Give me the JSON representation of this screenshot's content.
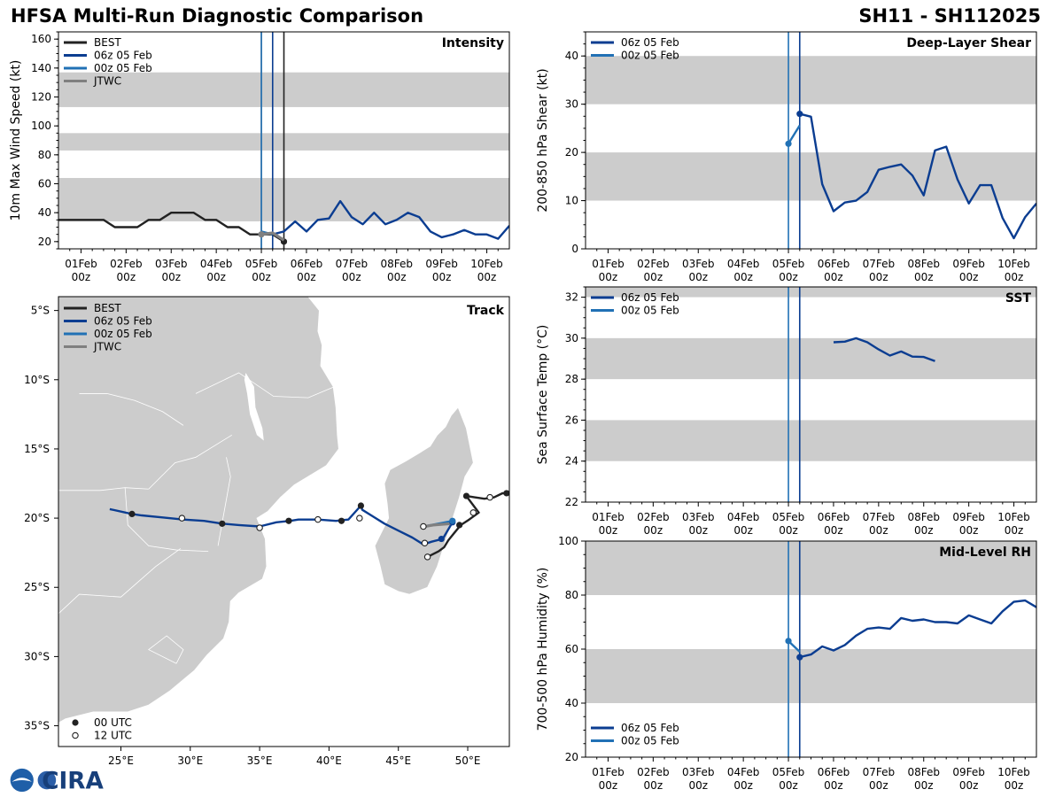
{
  "header": {
    "title": "HFSA Multi-Run Diagnostic Comparison",
    "storm_id": "SH11 - SH112025"
  },
  "logos": {
    "cira": "CIRA"
  },
  "colors": {
    "best": "#222222",
    "run06": "#0b3d91",
    "run00": "#2171b5",
    "jtwc": "#808080",
    "band": "#cccccc",
    "land": "#cccccc",
    "border": "#ffffff"
  },
  "time_axis": {
    "tick_labels": [
      [
        "01Feb",
        "00z"
      ],
      [
        "02Feb",
        "00z"
      ],
      [
        "03Feb",
        "00z"
      ],
      [
        "04Feb",
        "00z"
      ],
      [
        "05Feb",
        "00z"
      ],
      [
        "06Feb",
        "00z"
      ],
      [
        "07Feb",
        "00z"
      ],
      [
        "08Feb",
        "00z"
      ],
      [
        "09Feb",
        "00z"
      ],
      [
        "10Feb",
        "00z"
      ]
    ],
    "tick_days": [
      1,
      2,
      3,
      4,
      5,
      6,
      7,
      8,
      9,
      10
    ],
    "range_days": [
      0.5,
      10.5
    ]
  },
  "chart_data": [
    {
      "id": "intensity",
      "type": "line",
      "title": "Intensity",
      "ylabel": "10m Max Wind Speed (kt)",
      "ylim": [
        15,
        165
      ],
      "yticks": [
        20,
        40,
        60,
        80,
        100,
        120,
        140,
        160
      ],
      "bands": [
        [
          34,
          64
        ],
        [
          83,
          95
        ],
        [
          113,
          137
        ]
      ],
      "vlines": [
        {
          "x": 5.0,
          "series": "jtwc"
        },
        {
          "x": 5.0,
          "series": "run00"
        },
        {
          "x": 5.25,
          "series": "run06"
        },
        {
          "x": 5.5,
          "series": "best"
        }
      ],
      "legend": [
        "BEST",
        "06z 05 Feb",
        "00z 05 Feb",
        "JTWC"
      ],
      "series": [
        {
          "name": "BEST",
          "key": "best",
          "x": [
            0.5,
            0.75,
            1,
            1.25,
            1.5,
            1.75,
            2,
            2.25,
            2.5,
            2.75,
            3,
            3.25,
            3.5,
            3.75,
            4,
            4.25,
            4.5,
            4.75,
            5,
            5.25,
            5.5
          ],
          "y": [
            35,
            35,
            35,
            35,
            35,
            30,
            30,
            30,
            35,
            35,
            40,
            40,
            40,
            35,
            35,
            30,
            30,
            25,
            25,
            25,
            20
          ],
          "end_marker": true
        },
        {
          "name": "06z 05 Feb",
          "key": "run06",
          "x": [
            5.25,
            5.5,
            5.75,
            6,
            6.25,
            6.5,
            6.75,
            7,
            7.25,
            7.5,
            7.75,
            8,
            8.25,
            8.5,
            8.75,
            9,
            9.25,
            9.5,
            9.75,
            10,
            10.25,
            10.5
          ],
          "y": [
            25,
            27,
            34,
            27,
            35,
            36,
            48,
            37,
            32,
            40,
            32,
            35,
            40,
            37,
            27,
            23,
            25,
            28,
            25,
            25,
            22,
            31
          ]
        },
        {
          "name": "00z 05 Feb",
          "key": "run00",
          "x": [
            5,
            5.25
          ],
          "y": [
            27,
            25
          ]
        },
        {
          "name": "JTWC",
          "key": "jtwc",
          "x": [
            5,
            5.25,
            5.5
          ],
          "y": [
            25,
            26,
            21
          ],
          "start_marker": true
        }
      ]
    },
    {
      "id": "shear",
      "type": "line",
      "title": "Deep-Layer Shear",
      "ylabel": "200-850 hPa Shear (kt)",
      "ylim": [
        0,
        45
      ],
      "yticks": [
        0,
        10,
        20,
        30,
        40
      ],
      "bands": [
        [
          10,
          20
        ],
        [
          30,
          40
        ]
      ],
      "vlines": [
        {
          "x": 5.0,
          "series": "run00"
        },
        {
          "x": 5.25,
          "series": "run06"
        }
      ],
      "legend": [
        "06z 05 Feb",
        "00z 05 Feb"
      ],
      "series": [
        {
          "name": "06z 05 Feb",
          "key": "run06",
          "x": [
            5.25,
            5.5,
            5.75,
            6,
            6.25,
            6.5,
            6.75,
            7,
            7.25,
            7.5,
            7.75,
            8,
            8.25,
            8.5,
            8.75,
            9,
            9.25,
            9.5,
            9.75,
            10,
            10.25,
            10.5
          ],
          "y": [
            28,
            27.4,
            13.4,
            7.8,
            9.6,
            10,
            11.8,
            16.4,
            17,
            17.5,
            15.2,
            11.1,
            20.4,
            21.2,
            14.4,
            9.4,
            13.2,
            13.2,
            6.4,
            2.2,
            6.6,
            9.4
          ],
          "start_marker": true
        },
        {
          "name": "00z 05 Feb",
          "key": "run00",
          "x": [
            5,
            5.25
          ],
          "y": [
            21.8,
            25.6
          ],
          "start_marker": true
        }
      ]
    },
    {
      "id": "sst",
      "type": "line",
      "title": "SST",
      "ylabel": "Sea Surface Temp (°C)",
      "ylim": [
        22,
        32.5
      ],
      "yticks": [
        22,
        24,
        26,
        28,
        30,
        32
      ],
      "bands": [
        [
          24,
          26
        ],
        [
          28,
          30
        ],
        [
          32,
          32.5
        ]
      ],
      "vlines": [
        {
          "x": 5.0,
          "series": "run00"
        },
        {
          "x": 5.25,
          "series": "run06"
        }
      ],
      "legend": [
        "06z 05 Feb",
        "00z 05 Feb"
      ],
      "series": [
        {
          "name": "06z 05 Feb",
          "key": "run06",
          "x": [
            6,
            6.25,
            6.5,
            6.75,
            7,
            7.25,
            7.5,
            7.75,
            8,
            8.25
          ],
          "y": [
            29.8,
            29.83,
            30,
            29.8,
            29.45,
            29.15,
            29.35,
            29.1,
            29.08,
            28.88
          ]
        }
      ]
    },
    {
      "id": "rh",
      "type": "line",
      "title": "Mid-Level RH",
      "ylabel": "700-500 hPa Humidity (%)",
      "ylim": [
        20,
        100
      ],
      "yticks": [
        20,
        40,
        60,
        80,
        100
      ],
      "bands": [
        [
          40,
          60
        ],
        [
          80,
          100
        ]
      ],
      "vlines": [
        {
          "x": 5.0,
          "series": "run00"
        },
        {
          "x": 5.25,
          "series": "run06"
        }
      ],
      "legend": [
        "06z 05 Feb",
        "00z 05 Feb"
      ],
      "legend_pos": "bottom-left",
      "series": [
        {
          "name": "06z 05 Feb",
          "key": "run06",
          "x": [
            5.25,
            5.5,
            5.75,
            6,
            6.25,
            6.5,
            6.75,
            7,
            7.25,
            7.5,
            7.75,
            8,
            8.25,
            8.5,
            8.75,
            9,
            9.25,
            9.5,
            9.75,
            10,
            10.25,
            10.5
          ],
          "y": [
            57,
            58,
            61,
            59.5,
            61.5,
            65,
            67.5,
            68,
            67.5,
            71.5,
            70.5,
            71,
            70,
            70,
            69.5,
            72.5,
            71,
            69.5,
            74,
            77.5,
            78,
            75.5
          ],
          "start_marker": true
        },
        {
          "name": "00z 05 Feb",
          "key": "run00",
          "x": [
            5,
            5.25
          ],
          "y": [
            63,
            59
          ],
          "start_marker": true
        }
      ]
    },
    {
      "id": "track",
      "type": "scatter",
      "title": "Track",
      "xlim": [
        20.5,
        53
      ],
      "ylim": [
        -36.5,
        -4
      ],
      "xticks": [
        25,
        30,
        35,
        40,
        45,
        50
      ],
      "xtick_labels": [
        "25°E",
        "30°E",
        "35°E",
        "40°E",
        "45°E",
        "50°E"
      ],
      "yticks": [
        -5,
        -10,
        -15,
        -20,
        -25,
        -30,
        -35
      ],
      "ytick_labels": [
        "5°S",
        "10°S",
        "15°S",
        "20°S",
        "25°S",
        "30°S",
        "35°S"
      ],
      "legend": [
        "BEST",
        "06z 05 Feb",
        "00z 05 Feb",
        "JTWC"
      ],
      "marker_legend": [
        "00 UTC",
        "12 UTC"
      ],
      "best_track": {
        "lon": [
          53,
          52.5,
          51.9,
          51.2,
          50.5,
          49.9,
          50.5,
          50.8,
          50.1,
          49.5,
          49,
          48.6,
          48.3,
          47.9,
          47.3,
          47.0
        ],
        "lat": [
          -18.2,
          -18.2,
          -18.5,
          -18.6,
          -18.5,
          -18.4,
          -19.2,
          -19.6,
          -20.1,
          -20.5,
          -21.1,
          -21.6,
          -22.1,
          -22.4,
          -22.7,
          -22.9
        ],
        "markers": [
          {
            "lon": 52.8,
            "lat": -18.2,
            "m": "00"
          },
          {
            "lon": 51.6,
            "lat": -18.5,
            "m": "12"
          },
          {
            "lon": 49.9,
            "lat": -18.4,
            "m": "00"
          },
          {
            "lon": 50.4,
            "lat": -19.6,
            "m": "12"
          },
          {
            "lon": 49.4,
            "lat": -20.5,
            "m": "00"
          },
          {
            "lon": 47.1,
            "lat": -22.8,
            "m": "12"
          }
        ]
      },
      "run06": {
        "lon": [
          48.9,
          48.2,
          47.4,
          46.8,
          46,
          45,
          44,
          43.2,
          42.4,
          42.3
        ],
        "lat": [
          -20.3,
          -21.5,
          -21.7,
          -21.9,
          -21.4,
          -20.9,
          -20.4,
          -19.9,
          -19.4,
          -19.1
        ],
        "lon2": [
          42.3,
          41.4,
          40.5,
          39.2,
          37.8,
          37.2,
          36.2,
          35,
          33.5,
          32.3,
          31,
          29.5,
          28,
          26.5,
          25.8,
          24.2
        ],
        "lat2": [
          -19.1,
          -20.1,
          -20.2,
          -20.1,
          -20.1,
          -20.2,
          -20.3,
          -20.6,
          -20.5,
          -20.4,
          -20.2,
          -20.1,
          -19.95,
          -19.8,
          -19.7,
          -19.35
        ],
        "markers": [
          {
            "lon": 48.9,
            "lat": -20.3,
            "m": "run"
          },
          {
            "lon": 48.1,
            "lat": -21.5,
            "m": "run"
          },
          {
            "lon": 46.9,
            "lat": -21.8,
            "m": "12"
          },
          {
            "lon": 42.3,
            "lat": -19.1,
            "m": "00"
          },
          {
            "lon": 42.2,
            "lat": -20.0,
            "m": "12"
          },
          {
            "lon": 40.9,
            "lat": -20.2,
            "m": "00"
          },
          {
            "lon": 39.2,
            "lat": -20.1,
            "m": "12"
          },
          {
            "lon": 37.1,
            "lat": -20.2,
            "m": "00"
          },
          {
            "lon": 35.0,
            "lat": -20.7,
            "m": "12"
          },
          {
            "lon": 32.3,
            "lat": -20.4,
            "m": "00"
          },
          {
            "lon": 29.4,
            "lat": -20.0,
            "m": "12"
          },
          {
            "lon": 25.8,
            "lat": -19.7,
            "m": "00"
          }
        ]
      },
      "run00": {
        "lon": [
          48.9,
          46.8
        ],
        "lat": [
          -20.2,
          -20.6
        ],
        "markers": [
          {
            "lon": 48.9,
            "lat": -20.2,
            "m": "run"
          },
          {
            "lon": 46.8,
            "lat": -20.6,
            "m": "12"
          }
        ]
      },
      "jtwc": {
        "lon": [
          48.8,
          47.5,
          46.9
        ],
        "lat": [
          -20.4,
          -20.5,
          -20.6
        ]
      }
    }
  ]
}
